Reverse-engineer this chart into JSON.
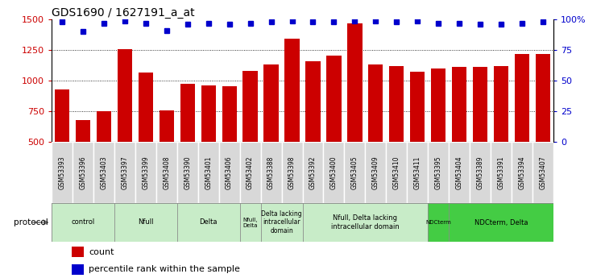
{
  "title": "GDS1690 / 1627191_a_at",
  "samples": [
    "GSM53393",
    "GSM53396",
    "GSM53403",
    "GSM53397",
    "GSM53399",
    "GSM53408",
    "GSM53390",
    "GSM53401",
    "GSM53406",
    "GSM53402",
    "GSM53388",
    "GSM53398",
    "GSM53392",
    "GSM53400",
    "GSM53405",
    "GSM53409",
    "GSM53410",
    "GSM53411",
    "GSM53395",
    "GSM53404",
    "GSM53389",
    "GSM53391",
    "GSM53394",
    "GSM53407"
  ],
  "counts": [
    925,
    675,
    750,
    1260,
    1065,
    755,
    975,
    960,
    955,
    1080,
    1130,
    1340,
    1160,
    1205,
    1470,
    1130,
    1120,
    1070,
    1100,
    1110,
    1110,
    1120,
    1215,
    1215
  ],
  "percentiles": [
    98,
    90,
    97,
    99,
    97,
    91,
    96,
    97,
    96,
    97,
    98,
    99,
    98,
    98,
    99,
    99,
    98,
    99,
    97,
    97,
    96,
    96,
    97,
    98
  ],
  "bar_color": "#cc0000",
  "dot_color": "#0000cc",
  "ylim_left": [
    500,
    1500
  ],
  "ylim_right": [
    0,
    100
  ],
  "yticks_left": [
    500,
    750,
    1000,
    1250,
    1500
  ],
  "yticks_right": [
    0,
    25,
    50,
    75,
    100
  ],
  "groups": [
    {
      "label": "control",
      "start": 0,
      "end": 3,
      "color": "#c8ecc8"
    },
    {
      "label": "Nfull",
      "start": 3,
      "end": 6,
      "color": "#c8ecc8"
    },
    {
      "label": "Delta",
      "start": 6,
      "end": 9,
      "color": "#c8ecc8"
    },
    {
      "label": "Nfull,\nDelta",
      "start": 9,
      "end": 10,
      "color": "#c8ecc8"
    },
    {
      "label": "Delta lacking\nintracellular\ndomain",
      "start": 10,
      "end": 12,
      "color": "#c8ecc8"
    },
    {
      "label": "Nfull, Delta lacking\nintracellular domain",
      "start": 12,
      "end": 18,
      "color": "#c8ecc8"
    },
    {
      "label": "NDCterm",
      "start": 18,
      "end": 19,
      "color": "#44cc44"
    },
    {
      "label": "NDCterm, Delta",
      "start": 19,
      "end": 24,
      "color": "#44cc44"
    }
  ]
}
